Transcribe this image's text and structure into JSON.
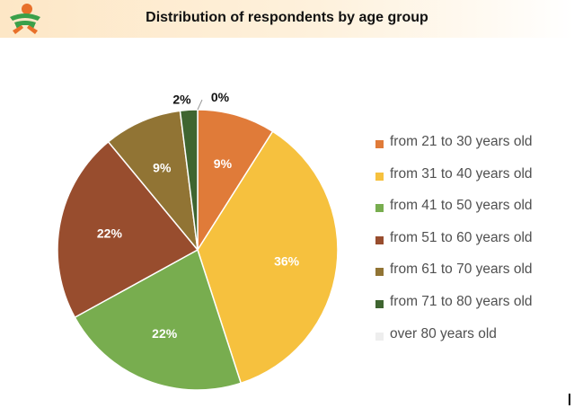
{
  "header": {
    "title": "Distribution of respondents by age group",
    "logo_icon": "person-logo-icon"
  },
  "chart_data": {
    "type": "pie",
    "title": "Distribution of respondents by age group",
    "legend_position": "right",
    "slices": [
      {
        "label": "from 21 to 30 years old",
        "value": 9,
        "display": "9%",
        "color": "#e07b39"
      },
      {
        "label": "from 31 to 40 years old",
        "value": 36,
        "display": "36%",
        "color": "#f6c13e"
      },
      {
        "label": "from 41 to 50 years old",
        "value": 22,
        "display": "22%",
        "color": "#78ad4f"
      },
      {
        "label": "from 51 to 60 years old",
        "value": 22,
        "display": "22%",
        "color": "#984d2e"
      },
      {
        "label": "from 61 to 70 years old",
        "value": 9,
        "display": "9%",
        "color": "#917434"
      },
      {
        "label": "from 71 to 80 years old",
        "value": 2,
        "display": "2%",
        "color": "#3f6530"
      },
      {
        "label": "over 80 years old",
        "value": 0,
        "display": "0%",
        "color": "#eeeeee"
      }
    ]
  }
}
